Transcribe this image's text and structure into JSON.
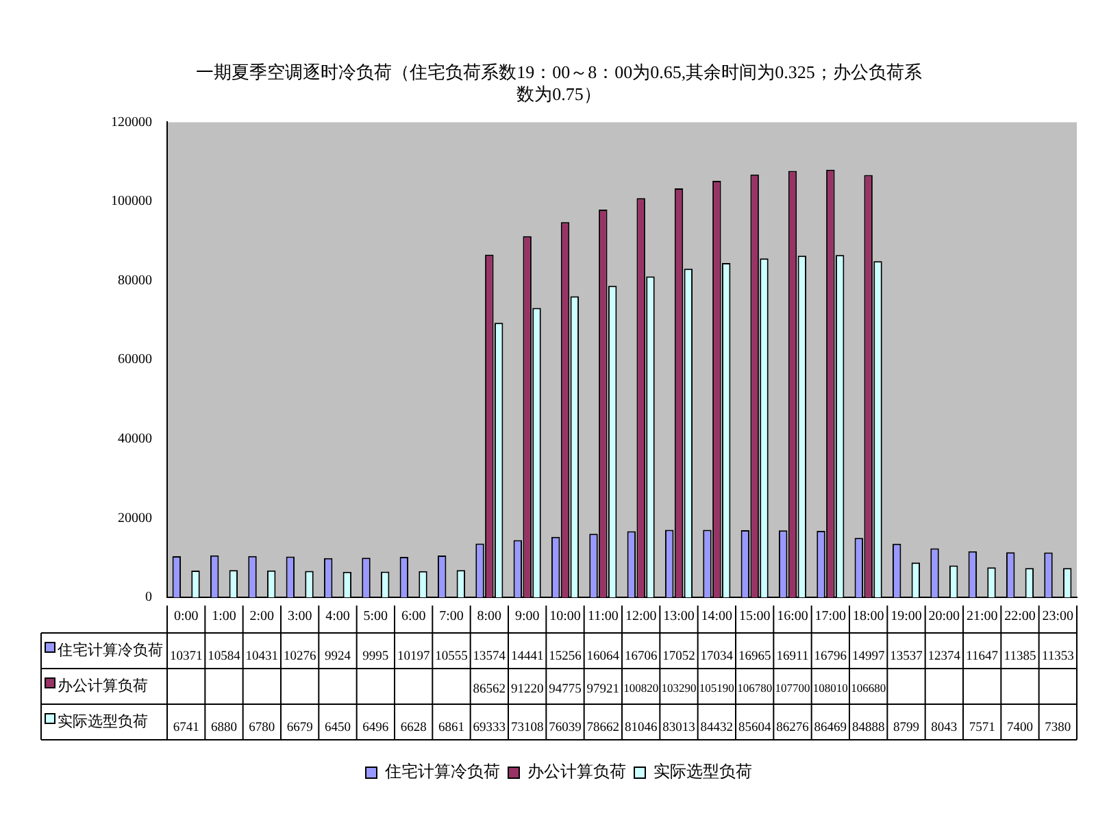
{
  "chart_data": {
    "type": "bar",
    "title": "一期夏季空调逐时冷负荷（住宅负荷系数19：00～8：00为0.65,其余时间为0.325；办公负荷系数为0.75）",
    "categories": [
      "0:00",
      "1:00",
      "2:00",
      "3:00",
      "4:00",
      "5:00",
      "6:00",
      "7:00",
      "8:00",
      "9:00",
      "10:00",
      "11:00",
      "12:00",
      "13:00",
      "14:00",
      "15:00",
      "16:00",
      "17:00",
      "18:00",
      "19:00",
      "20:00",
      "21:00",
      "22:00",
      "23:00"
    ],
    "series": [
      {
        "name": "住宅计算冷负荷",
        "color": "#9999ff",
        "values": [
          10371,
          10584,
          10431,
          10276,
          9924,
          9995,
          10197,
          10555,
          13574,
          14441,
          15256,
          16064,
          16706,
          17052,
          17034,
          16965,
          16911,
          16796,
          14997,
          13537,
          12374,
          11647,
          11385,
          11353
        ],
        "value_labels": [
          "10371",
          "10584",
          "10431",
          "10276",
          "9924",
          "9995",
          "10197",
          "10555",
          "13574",
          "14441",
          "15256",
          "16064",
          "16706",
          "17052",
          "17034",
          "16965",
          "16911",
          "16796",
          "14997",
          "13537",
          "12374",
          "11647",
          "11385",
          "11353"
        ]
      },
      {
        "name": "办公计算负荷",
        "color": "#993366",
        "values": [
          null,
          null,
          null,
          null,
          null,
          null,
          null,
          null,
          86562,
          91220,
          94775,
          97921,
          100820,
          103290,
          105190,
          106780,
          107700,
          108010,
          106680,
          null,
          null,
          null,
          null,
          null
        ],
        "value_labels": [
          null,
          null,
          null,
          null,
          null,
          null,
          null,
          null,
          "86562",
          "91220",
          "94775",
          "97921",
          "100820",
          "103290",
          "105190",
          "106780",
          "107700",
          "108010",
          "106680",
          null,
          null,
          null,
          null,
          null
        ]
      },
      {
        "name": "实际选型负荷",
        "color": "#ccffff",
        "values": [
          6741,
          6880,
          6780,
          6679,
          6450,
          6496,
          6628,
          6861,
          69333,
          73108,
          76039,
          78662,
          81046,
          83013,
          84432,
          85604,
          86276,
          86469,
          84888,
          8799,
          8043,
          7571,
          7400,
          7380
        ],
        "value_labels": [
          "6741",
          "6880",
          "6780",
          "6679",
          "6450",
          "6496",
          "6628",
          "6861",
          "69333",
          "73108",
          "76039",
          "78662",
          "81046",
          "83013",
          "84432",
          "85604",
          "86276",
          "86469",
          "84888",
          "8799",
          "8043",
          "7571",
          "7400",
          "7380"
        ]
      }
    ],
    "ylim": [
      0,
      120000
    ],
    "yticks": [
      0,
      20000,
      40000,
      60000,
      80000,
      100000,
      120000
    ],
    "grid": false,
    "legend": "bottom"
  }
}
